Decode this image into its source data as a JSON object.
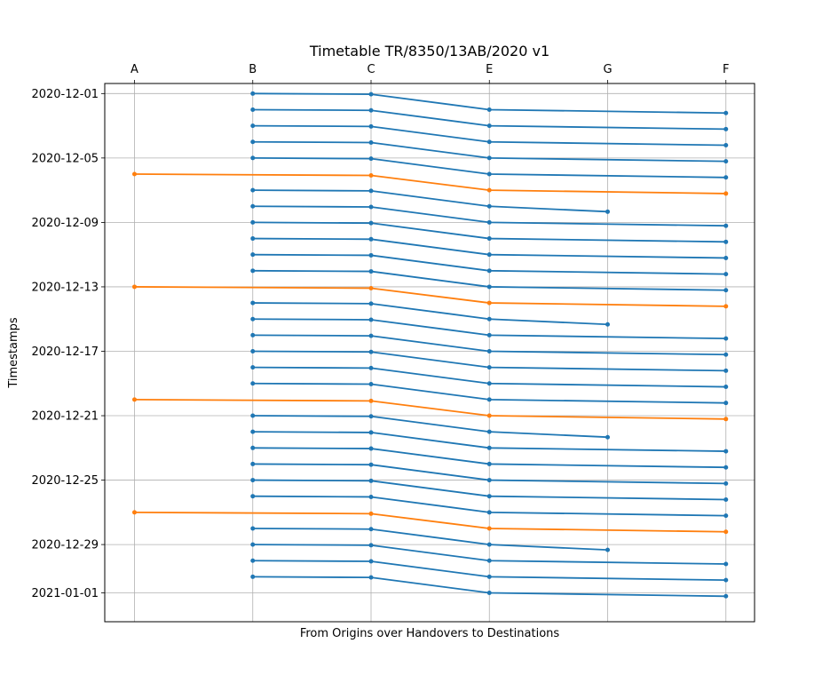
{
  "chart_data": {
    "type": "line",
    "title": "Timetable TR/8350/13AB/2020 v1",
    "xlabel": "From Origins over Handovers to Destinations",
    "ylabel": "Timestamps",
    "x_categories": [
      "A",
      "B",
      "C",
      "E",
      "G",
      "F"
    ],
    "y_axis": {
      "type": "date",
      "inverted": true,
      "range": [
        "2020-11-30 09:00",
        "2021-01-02 19:00"
      ],
      "tick_labels": [
        "2020-12-01",
        "2020-12-05",
        "2020-12-09",
        "2020-12-13",
        "2020-12-17",
        "2020-12-21",
        "2020-12-25",
        "2020-12-29",
        "2021-01-01"
      ]
    },
    "grid": true,
    "colors": {
      "regular": "#1f77b4",
      "origin_a": "#ff7f0e"
    },
    "series": [
      {
        "color": "regular",
        "points": [
          {
            "x": "B",
            "y": "2020-12-01 00:00"
          },
          {
            "x": "C",
            "y": "2020-12-01 01:00"
          },
          {
            "x": "E",
            "y": "2020-12-02 00:00"
          },
          {
            "x": "F",
            "y": "2020-12-02 05:00"
          }
        ]
      },
      {
        "color": "regular",
        "points": [
          {
            "x": "B",
            "y": "2020-12-02 00:00"
          },
          {
            "x": "C",
            "y": "2020-12-02 01:00"
          },
          {
            "x": "E",
            "y": "2020-12-03 00:00"
          },
          {
            "x": "F",
            "y": "2020-12-03 05:00"
          }
        ]
      },
      {
        "color": "regular",
        "points": [
          {
            "x": "B",
            "y": "2020-12-03 00:00"
          },
          {
            "x": "C",
            "y": "2020-12-03 01:00"
          },
          {
            "x": "E",
            "y": "2020-12-04 00:00"
          },
          {
            "x": "F",
            "y": "2020-12-04 05:00"
          }
        ]
      },
      {
        "color": "regular",
        "points": [
          {
            "x": "B",
            "y": "2020-12-04 00:00"
          },
          {
            "x": "C",
            "y": "2020-12-04 01:00"
          },
          {
            "x": "E",
            "y": "2020-12-05 00:00"
          },
          {
            "x": "F",
            "y": "2020-12-05 05:00"
          }
        ]
      },
      {
        "color": "regular",
        "points": [
          {
            "x": "B",
            "y": "2020-12-05 00:00"
          },
          {
            "x": "C",
            "y": "2020-12-05 01:00"
          },
          {
            "x": "E",
            "y": "2020-12-06 00:00"
          },
          {
            "x": "F",
            "y": "2020-12-06 05:00"
          }
        ]
      },
      {
        "color": "origin_a",
        "points": [
          {
            "x": "A",
            "y": "2020-12-06 00:00"
          },
          {
            "x": "C",
            "y": "2020-12-06 02:00"
          },
          {
            "x": "E",
            "y": "2020-12-07 00:00"
          },
          {
            "x": "F",
            "y": "2020-12-07 05:00"
          }
        ]
      },
      {
        "color": "regular",
        "points": [
          {
            "x": "B",
            "y": "2020-12-07 00:00"
          },
          {
            "x": "C",
            "y": "2020-12-07 01:00"
          },
          {
            "x": "E",
            "y": "2020-12-08 00:00"
          },
          {
            "x": "G",
            "y": "2020-12-08 08:00"
          }
        ]
      },
      {
        "color": "regular",
        "points": [
          {
            "x": "B",
            "y": "2020-12-08 00:00"
          },
          {
            "x": "C",
            "y": "2020-12-08 01:00"
          },
          {
            "x": "E",
            "y": "2020-12-09 00:00"
          },
          {
            "x": "F",
            "y": "2020-12-09 05:00"
          }
        ]
      },
      {
        "color": "regular",
        "points": [
          {
            "x": "B",
            "y": "2020-12-09 00:00"
          },
          {
            "x": "C",
            "y": "2020-12-09 01:00"
          },
          {
            "x": "E",
            "y": "2020-12-10 00:00"
          },
          {
            "x": "F",
            "y": "2020-12-10 05:00"
          }
        ]
      },
      {
        "color": "regular",
        "points": [
          {
            "x": "B",
            "y": "2020-12-10 00:00"
          },
          {
            "x": "C",
            "y": "2020-12-10 01:00"
          },
          {
            "x": "E",
            "y": "2020-12-11 00:00"
          },
          {
            "x": "F",
            "y": "2020-12-11 05:00"
          }
        ]
      },
      {
        "color": "regular",
        "points": [
          {
            "x": "B",
            "y": "2020-12-11 00:00"
          },
          {
            "x": "C",
            "y": "2020-12-11 01:00"
          },
          {
            "x": "E",
            "y": "2020-12-12 00:00"
          },
          {
            "x": "F",
            "y": "2020-12-12 05:00"
          }
        ]
      },
      {
        "color": "regular",
        "points": [
          {
            "x": "B",
            "y": "2020-12-12 00:00"
          },
          {
            "x": "C",
            "y": "2020-12-12 01:00"
          },
          {
            "x": "E",
            "y": "2020-12-13 00:00"
          },
          {
            "x": "F",
            "y": "2020-12-13 05:00"
          }
        ]
      },
      {
        "color": "origin_a",
        "points": [
          {
            "x": "A",
            "y": "2020-12-13 00:00"
          },
          {
            "x": "C",
            "y": "2020-12-13 02:00"
          },
          {
            "x": "E",
            "y": "2020-12-14 00:00"
          },
          {
            "x": "F",
            "y": "2020-12-14 05:00"
          }
        ]
      },
      {
        "color": "regular",
        "points": [
          {
            "x": "B",
            "y": "2020-12-14 00:00"
          },
          {
            "x": "C",
            "y": "2020-12-14 01:00"
          },
          {
            "x": "E",
            "y": "2020-12-15 00:00"
          },
          {
            "x": "G",
            "y": "2020-12-15 08:00"
          }
        ]
      },
      {
        "color": "regular",
        "points": [
          {
            "x": "B",
            "y": "2020-12-15 00:00"
          },
          {
            "x": "C",
            "y": "2020-12-15 01:00"
          },
          {
            "x": "E",
            "y": "2020-12-16 00:00"
          },
          {
            "x": "F",
            "y": "2020-12-16 05:00"
          }
        ]
      },
      {
        "color": "regular",
        "points": [
          {
            "x": "B",
            "y": "2020-12-16 00:00"
          },
          {
            "x": "C",
            "y": "2020-12-16 01:00"
          },
          {
            "x": "E",
            "y": "2020-12-17 00:00"
          },
          {
            "x": "F",
            "y": "2020-12-17 05:00"
          }
        ]
      },
      {
        "color": "regular",
        "points": [
          {
            "x": "B",
            "y": "2020-12-17 00:00"
          },
          {
            "x": "C",
            "y": "2020-12-17 01:00"
          },
          {
            "x": "E",
            "y": "2020-12-18 00:00"
          },
          {
            "x": "F",
            "y": "2020-12-18 05:00"
          }
        ]
      },
      {
        "color": "regular",
        "points": [
          {
            "x": "B",
            "y": "2020-12-18 00:00"
          },
          {
            "x": "C",
            "y": "2020-12-18 01:00"
          },
          {
            "x": "E",
            "y": "2020-12-19 00:00"
          },
          {
            "x": "F",
            "y": "2020-12-19 05:00"
          }
        ]
      },
      {
        "color": "regular",
        "points": [
          {
            "x": "B",
            "y": "2020-12-19 00:00"
          },
          {
            "x": "C",
            "y": "2020-12-19 01:00"
          },
          {
            "x": "E",
            "y": "2020-12-20 00:00"
          },
          {
            "x": "F",
            "y": "2020-12-20 05:00"
          }
        ]
      },
      {
        "color": "origin_a",
        "points": [
          {
            "x": "A",
            "y": "2020-12-20 00:00"
          },
          {
            "x": "C",
            "y": "2020-12-20 02:00"
          },
          {
            "x": "E",
            "y": "2020-12-21 00:00"
          },
          {
            "x": "F",
            "y": "2020-12-21 05:00"
          }
        ]
      },
      {
        "color": "regular",
        "points": [
          {
            "x": "B",
            "y": "2020-12-21 00:00"
          },
          {
            "x": "C",
            "y": "2020-12-21 01:00"
          },
          {
            "x": "E",
            "y": "2020-12-22 00:00"
          },
          {
            "x": "G",
            "y": "2020-12-22 08:00"
          }
        ]
      },
      {
        "color": "regular",
        "points": [
          {
            "x": "B",
            "y": "2020-12-22 00:00"
          },
          {
            "x": "C",
            "y": "2020-12-22 01:00"
          },
          {
            "x": "E",
            "y": "2020-12-23 00:00"
          },
          {
            "x": "F",
            "y": "2020-12-23 05:00"
          }
        ]
      },
      {
        "color": "regular",
        "points": [
          {
            "x": "B",
            "y": "2020-12-23 00:00"
          },
          {
            "x": "C",
            "y": "2020-12-23 01:00"
          },
          {
            "x": "E",
            "y": "2020-12-24 00:00"
          },
          {
            "x": "F",
            "y": "2020-12-24 05:00"
          }
        ]
      },
      {
        "color": "regular",
        "points": [
          {
            "x": "B",
            "y": "2020-12-24 00:00"
          },
          {
            "x": "C",
            "y": "2020-12-24 01:00"
          },
          {
            "x": "E",
            "y": "2020-12-25 00:00"
          },
          {
            "x": "F",
            "y": "2020-12-25 05:00"
          }
        ]
      },
      {
        "color": "regular",
        "points": [
          {
            "x": "B",
            "y": "2020-12-25 00:00"
          },
          {
            "x": "C",
            "y": "2020-12-25 01:00"
          },
          {
            "x": "E",
            "y": "2020-12-26 00:00"
          },
          {
            "x": "F",
            "y": "2020-12-26 05:00"
          }
        ]
      },
      {
        "color": "regular",
        "points": [
          {
            "x": "B",
            "y": "2020-12-26 00:00"
          },
          {
            "x": "C",
            "y": "2020-12-26 01:00"
          },
          {
            "x": "E",
            "y": "2020-12-27 00:00"
          },
          {
            "x": "F",
            "y": "2020-12-27 05:00"
          }
        ]
      },
      {
        "color": "origin_a",
        "points": [
          {
            "x": "A",
            "y": "2020-12-27 00:00"
          },
          {
            "x": "C",
            "y": "2020-12-27 02:00"
          },
          {
            "x": "E",
            "y": "2020-12-28 00:00"
          },
          {
            "x": "F",
            "y": "2020-12-28 05:00"
          }
        ]
      },
      {
        "color": "regular",
        "points": [
          {
            "x": "B",
            "y": "2020-12-28 00:00"
          },
          {
            "x": "C",
            "y": "2020-12-28 01:00"
          },
          {
            "x": "E",
            "y": "2020-12-29 00:00"
          },
          {
            "x": "G",
            "y": "2020-12-29 08:00"
          }
        ]
      },
      {
        "color": "regular",
        "points": [
          {
            "x": "B",
            "y": "2020-12-29 00:00"
          },
          {
            "x": "C",
            "y": "2020-12-29 01:00"
          },
          {
            "x": "E",
            "y": "2020-12-30 00:00"
          },
          {
            "x": "F",
            "y": "2020-12-30 05:00"
          }
        ]
      },
      {
        "color": "regular",
        "points": [
          {
            "x": "B",
            "y": "2020-12-30 00:00"
          },
          {
            "x": "C",
            "y": "2020-12-30 01:00"
          },
          {
            "x": "E",
            "y": "2020-12-31 00:00"
          },
          {
            "x": "F",
            "y": "2020-12-31 05:00"
          }
        ]
      },
      {
        "color": "regular",
        "points": [
          {
            "x": "B",
            "y": "2020-12-31 00:00"
          },
          {
            "x": "C",
            "y": "2020-12-31 01:00"
          },
          {
            "x": "E",
            "y": "2021-01-01 00:00"
          },
          {
            "x": "F",
            "y": "2021-01-01 05:00"
          }
        ]
      }
    ]
  }
}
